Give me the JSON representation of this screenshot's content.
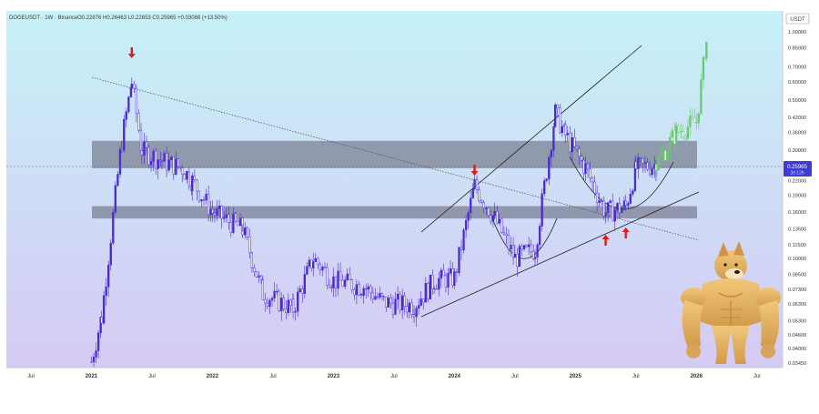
{
  "header": {
    "symbol": "DOGEUSDT · 1W · Binance",
    "ohlc": "O0.22876 H0.26463 L0.22653 C0.25965 +0.03088 (+13.50%)"
  },
  "price_scale_currency": "USDT",
  "current_price": {
    "value": "0.25965",
    "countdown": "2d 12h"
  },
  "colors": {
    "bg_top": "#c6f1f7",
    "bg_bottom": "#d6caf5",
    "candle": "#4b2ad1",
    "projection": "#69c96e",
    "zone": "#6b6e80",
    "arrow": "#e01b1b",
    "price_label": "#3d3ad9"
  },
  "chart_data": {
    "type": "candlestick",
    "symbol": "DOGEUSDT",
    "interval": "1W",
    "y_scale": "log",
    "ylim": [
      0.0345,
      1.0
    ],
    "yticks": [
      "1.00000",
      "0.85000",
      "0.70000",
      "0.60000",
      "0.50000",
      "0.42000",
      "0.36000",
      "0.30000",
      "0.22000",
      "0.19000",
      "0.16000",
      "0.13500",
      "0.11500",
      "0.10000",
      "0.08500",
      "0.07300",
      "0.06300",
      "0.05300",
      "0.04600",
      "0.04000",
      "0.03450"
    ],
    "xticks": [
      "Jul",
      "2021",
      "Jul",
      "2022",
      "Jul",
      "2023",
      "Jul",
      "2024",
      "Jul",
      "2025",
      "Jul",
      "2026",
      "Jul"
    ],
    "last_close": 0.25965,
    "price_path": [
      [
        "2021-01",
        0.035
      ],
      [
        "2021-02",
        0.055
      ],
      [
        "2021-04",
        0.33
      ],
      [
        "2021-05",
        0.6
      ],
      [
        "2021-06",
        0.3
      ],
      [
        "2021-08",
        0.27
      ],
      [
        "2021-10",
        0.25
      ],
      [
        "2021-11",
        0.22
      ],
      [
        "2022-01",
        0.16
      ],
      [
        "2022-04",
        0.135
      ],
      [
        "2022-06",
        0.07
      ],
      [
        "2022-09",
        0.06
      ],
      [
        "2022-11",
        0.1
      ],
      [
        "2023-01",
        0.08
      ],
      [
        "2023-04",
        0.075
      ],
      [
        "2023-06",
        0.064
      ],
      [
        "2023-09",
        0.062
      ],
      [
        "2023-11",
        0.08
      ],
      [
        "2024-01",
        0.082
      ],
      [
        "2024-03",
        0.21
      ],
      [
        "2024-05",
        0.15
      ],
      [
        "2024-07",
        0.1
      ],
      [
        "2024-09",
        0.11
      ],
      [
        "2024-11",
        0.44
      ],
      [
        "2024-12",
        0.35
      ],
      [
        "2025-02",
        0.25
      ],
      [
        "2025-04",
        0.16
      ],
      [
        "2025-06",
        0.17
      ],
      [
        "2025-07",
        0.25
      ],
      [
        "2025-09",
        0.26
      ]
    ],
    "projection_path": [
      [
        "2025-09",
        0.26
      ],
      [
        "2025-11",
        0.36
      ],
      [
        "2026-01",
        0.4
      ],
      [
        "2026-02",
        0.9
      ]
    ],
    "zones": [
      {
        "low": 0.25,
        "high": 0.33
      },
      {
        "low": 0.15,
        "high": 0.17
      }
    ],
    "arrows": [
      {
        "date": "2021-05",
        "direction": "down"
      },
      {
        "date": "2024-03",
        "direction": "down"
      },
      {
        "date": "2025-04",
        "direction": "up"
      },
      {
        "date": "2025-06",
        "direction": "up"
      }
    ]
  }
}
